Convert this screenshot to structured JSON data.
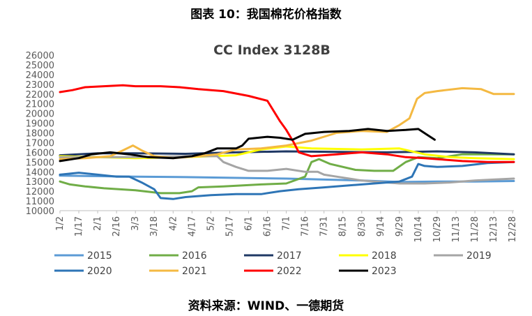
{
  "figure_caption": "图表 10：我国棉花价格指数",
  "source_note": "资料来源：WIND、一德期货",
  "chart_data": {
    "type": "line",
    "title": "CC Index 3128B",
    "xlabel": "",
    "ylabel": "",
    "ylim": [
      10000,
      26000
    ],
    "yticks": [
      10000,
      11000,
      12000,
      13000,
      14000,
      15000,
      16000,
      17000,
      18000,
      19000,
      20000,
      21000,
      22000,
      23000,
      24000,
      25000,
      26000
    ],
    "xlim": [
      0,
      361
    ],
    "xticks": [
      {
        "x": 0,
        "label": "1/2"
      },
      {
        "x": 15,
        "label": "1/17"
      },
      {
        "x": 30,
        "label": "2/1"
      },
      {
        "x": 45,
        "label": "2/16"
      },
      {
        "x": 60,
        "label": "3/3"
      },
      {
        "x": 75,
        "label": "3/18"
      },
      {
        "x": 90,
        "label": "4/2"
      },
      {
        "x": 105,
        "label": "4/17"
      },
      {
        "x": 120,
        "label": "5/2"
      },
      {
        "x": 135,
        "label": "5/17"
      },
      {
        "x": 150,
        "label": "6/1"
      },
      {
        "x": 165,
        "label": "6/16"
      },
      {
        "x": 180,
        "label": "7/1"
      },
      {
        "x": 195,
        "label": "7/16"
      },
      {
        "x": 210,
        "label": "7/31"
      },
      {
        "x": 225,
        "label": "8/15"
      },
      {
        "x": 240,
        "label": "8/30"
      },
      {
        "x": 255,
        "label": "9/14"
      },
      {
        "x": 270,
        "label": "9/29"
      },
      {
        "x": 285,
        "label": "10/14"
      },
      {
        "x": 300,
        "label": "10/29"
      },
      {
        "x": 315,
        "label": "11/13"
      },
      {
        "x": 330,
        "label": "11/28"
      },
      {
        "x": 345,
        "label": "12/13"
      },
      {
        "x": 360,
        "label": "12/28"
      }
    ],
    "grid": false,
    "legend_position": "bottom",
    "series": [
      {
        "name": "2015",
        "color": "#5B9BD5",
        "points": [
          [
            0,
            13600
          ],
          [
            30,
            13550
          ],
          [
            60,
            13500
          ],
          [
            100,
            13450
          ],
          [
            150,
            13350
          ],
          [
            180,
            13300
          ],
          [
            210,
            13200
          ],
          [
            240,
            13100
          ],
          [
            270,
            12950
          ],
          [
            300,
            13000
          ],
          [
            330,
            13000
          ],
          [
            361,
            13050
          ]
        ]
      },
      {
        "name": "2016",
        "color": "#70AD47",
        "points": [
          [
            0,
            13000
          ],
          [
            8,
            12700
          ],
          [
            20,
            12500
          ],
          [
            35,
            12300
          ],
          [
            60,
            12100
          ],
          [
            80,
            11800
          ],
          [
            95,
            11800
          ],
          [
            105,
            12000
          ],
          [
            110,
            12400
          ],
          [
            130,
            12500
          ],
          [
            160,
            12700
          ],
          [
            180,
            12800
          ],
          [
            195,
            13500
          ],
          [
            200,
            15000
          ],
          [
            206,
            15300
          ],
          [
            215,
            14800
          ],
          [
            235,
            14200
          ],
          [
            250,
            14100
          ],
          [
            265,
            14100
          ],
          [
            275,
            15000
          ],
          [
            285,
            15500
          ],
          [
            300,
            15400
          ],
          [
            320,
            15800
          ],
          [
            345,
            15800
          ],
          [
            361,
            15800
          ]
        ]
      },
      {
        "name": "2017",
        "color": "#1F3864",
        "points": [
          [
            0,
            15700
          ],
          [
            30,
            15900
          ],
          [
            60,
            15900
          ],
          [
            100,
            15850
          ],
          [
            140,
            16000
          ],
          [
            180,
            16100
          ],
          [
            220,
            16050
          ],
          [
            260,
            16000
          ],
          [
            300,
            16100
          ],
          [
            330,
            16000
          ],
          [
            361,
            15800
          ]
        ]
      },
      {
        "name": "2018",
        "color": "#FFFF00",
        "points": [
          [
            0,
            15600
          ],
          [
            30,
            15500
          ],
          [
            60,
            15400
          ],
          [
            100,
            15500
          ],
          [
            140,
            15700
          ],
          [
            160,
            16300
          ],
          [
            180,
            16600
          ],
          [
            200,
            16400
          ],
          [
            240,
            16300
          ],
          [
            270,
            16400
          ],
          [
            290,
            15800
          ],
          [
            310,
            15500
          ],
          [
            330,
            15400
          ],
          [
            361,
            15300
          ]
        ]
      },
      {
        "name": "2019",
        "color": "#A5A5A5",
        "points": [
          [
            0,
            15500
          ],
          [
            30,
            15500
          ],
          [
            60,
            15500
          ],
          [
            100,
            15600
          ],
          [
            125,
            15600
          ],
          [
            130,
            15000
          ],
          [
            140,
            14500
          ],
          [
            150,
            14100
          ],
          [
            165,
            14100
          ],
          [
            180,
            14300
          ],
          [
            195,
            14000
          ],
          [
            205,
            14000
          ],
          [
            210,
            13700
          ],
          [
            220,
            13500
          ],
          [
            230,
            13300
          ],
          [
            240,
            13100
          ],
          [
            270,
            12800
          ],
          [
            290,
            12800
          ],
          [
            310,
            12900
          ],
          [
            330,
            13100
          ],
          [
            345,
            13200
          ],
          [
            361,
            13300
          ]
        ]
      },
      {
        "name": "2020",
        "color": "#2E75B6",
        "points": [
          [
            0,
            13700
          ],
          [
            15,
            13900
          ],
          [
            30,
            13700
          ],
          [
            45,
            13500
          ],
          [
            55,
            13500
          ],
          [
            60,
            13200
          ],
          [
            65,
            12900
          ],
          [
            75,
            12200
          ],
          [
            80,
            11300
          ],
          [
            90,
            11200
          ],
          [
            100,
            11400
          ],
          [
            120,
            11600
          ],
          [
            140,
            11700
          ],
          [
            160,
            11700
          ],
          [
            175,
            12000
          ],
          [
            190,
            12200
          ],
          [
            210,
            12400
          ],
          [
            230,
            12600
          ],
          [
            250,
            12800
          ],
          [
            270,
            13000
          ],
          [
            280,
            13500
          ],
          [
            285,
            14800
          ],
          [
            290,
            14600
          ],
          [
            300,
            14500
          ],
          [
            320,
            14600
          ],
          [
            340,
            14900
          ],
          [
            361,
            15000
          ]
        ]
      },
      {
        "name": "2021",
        "color": "#F4B942",
        "points": [
          [
            0,
            15300
          ],
          [
            20,
            15400
          ],
          [
            40,
            15600
          ],
          [
            50,
            16200
          ],
          [
            58,
            16700
          ],
          [
            65,
            16200
          ],
          [
            75,
            15600
          ],
          [
            90,
            15400
          ],
          [
            110,
            15600
          ],
          [
            125,
            15800
          ],
          [
            140,
            16300
          ],
          [
            160,
            16400
          ],
          [
            180,
            16700
          ],
          [
            200,
            17200
          ],
          [
            220,
            18000
          ],
          [
            240,
            18200
          ],
          [
            260,
            18100
          ],
          [
            270,
            18800
          ],
          [
            278,
            19500
          ],
          [
            284,
            21500
          ],
          [
            290,
            22100
          ],
          [
            300,
            22300
          ],
          [
            320,
            22600
          ],
          [
            335,
            22500
          ],
          [
            345,
            22000
          ],
          [
            361,
            22000
          ]
        ]
      },
      {
        "name": "2022",
        "color": "#FF0000",
        "points": [
          [
            0,
            22200
          ],
          [
            10,
            22400
          ],
          [
            20,
            22700
          ],
          [
            35,
            22800
          ],
          [
            50,
            22900
          ],
          [
            60,
            22800
          ],
          [
            80,
            22800
          ],
          [
            95,
            22700
          ],
          [
            110,
            22500
          ],
          [
            130,
            22300
          ],
          [
            150,
            21800
          ],
          [
            165,
            21300
          ],
          [
            175,
            19200
          ],
          [
            180,
            18300
          ],
          [
            186,
            17000
          ],
          [
            190,
            16000
          ],
          [
            200,
            15600
          ],
          [
            220,
            15800
          ],
          [
            240,
            16000
          ],
          [
            260,
            15800
          ],
          [
            275,
            15500
          ],
          [
            290,
            15400
          ],
          [
            300,
            15300
          ],
          [
            320,
            15100
          ],
          [
            340,
            15000
          ],
          [
            361,
            15000
          ]
        ]
      },
      {
        "name": "2023",
        "color": "#000000",
        "points": [
          [
            0,
            15100
          ],
          [
            15,
            15400
          ],
          [
            25,
            15800
          ],
          [
            40,
            16000
          ],
          [
            55,
            15800
          ],
          [
            70,
            15500
          ],
          [
            90,
            15400
          ],
          [
            105,
            15600
          ],
          [
            115,
            15900
          ],
          [
            125,
            16400
          ],
          [
            140,
            16400
          ],
          [
            145,
            16700
          ],
          [
            150,
            17400
          ],
          [
            165,
            17600
          ],
          [
            175,
            17500
          ],
          [
            185,
            17300
          ],
          [
            195,
            17900
          ],
          [
            210,
            18100
          ],
          [
            230,
            18200
          ],
          [
            245,
            18400
          ],
          [
            260,
            18200
          ],
          [
            275,
            18300
          ],
          [
            285,
            18400
          ],
          [
            292,
            17800
          ],
          [
            298,
            17300
          ]
        ]
      }
    ]
  }
}
